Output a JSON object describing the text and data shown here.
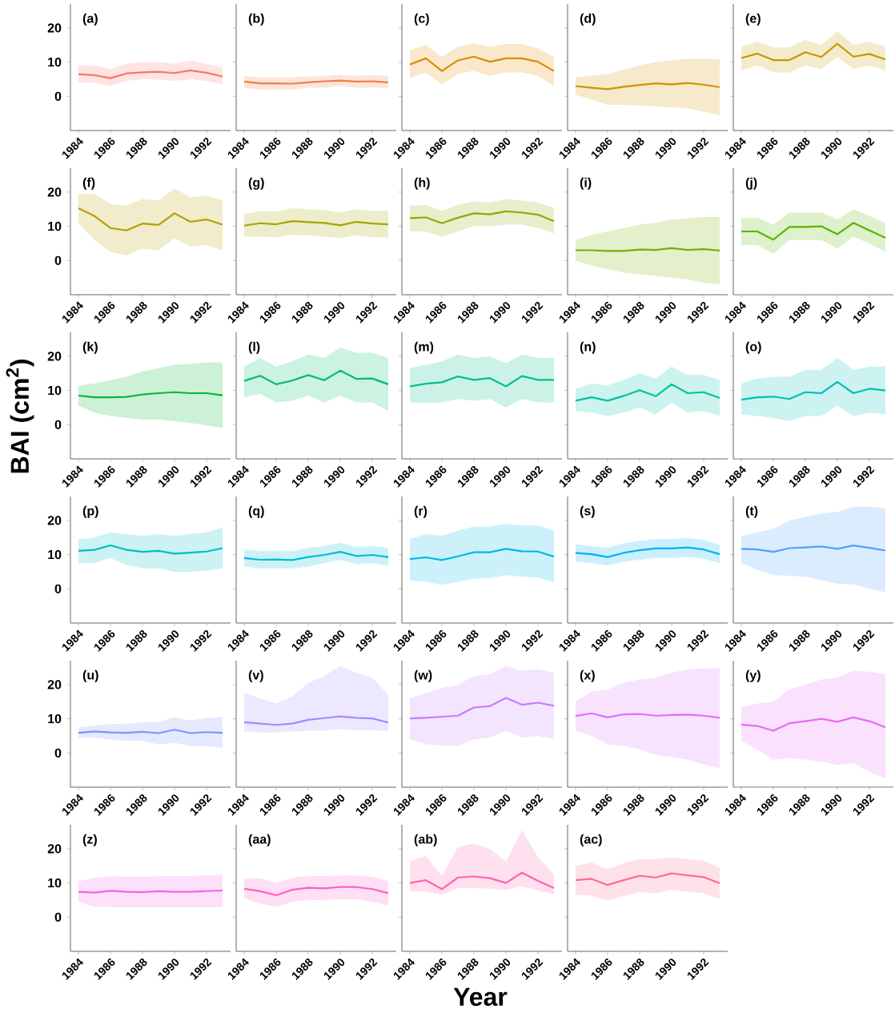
{
  "chart_data": [
    {
      "type": "line",
      "annotations": [
        "(a)"
      ],
      "x": [
        1984,
        1985,
        1986,
        1987,
        1988,
        1989,
        1990,
        1991,
        1992,
        1993
      ],
      "xlim": [
        1983.5,
        1993.5
      ],
      "ylim": [
        -10,
        27
      ],
      "xticks": [
        1984,
        1986,
        1988,
        1990,
        1992
      ],
      "yticks": [
        0,
        10,
        20
      ],
      "series": [
        {
          "color": "#F8766D",
          "values": [
            6.5,
            6.2,
            5.3,
            6.7,
            7.0,
            7.2,
            6.8,
            7.6,
            6.9,
            5.8
          ],
          "lower": [
            4,
            4,
            3,
            4.5,
            5,
            5,
            4.5,
            5,
            4.5,
            3.5
          ],
          "upper": [
            9,
            9,
            8,
            9.5,
            10,
            10,
            9.5,
            10.5,
            9.5,
            8.5
          ]
        }
      ]
    },
    {
      "type": "line",
      "annotations": [
        "(b)"
      ],
      "tick_labels": "x",
      "x": [
        1984,
        1985,
        1986,
        1987,
        1988,
        1989,
        1990,
        1991,
        1992,
        1993
      ],
      "xlim": [
        1983.5,
        1993.5
      ],
      "ylim": [
        -10,
        27
      ],
      "xticks": [
        1984,
        1986,
        1988,
        1990,
        1992
      ],
      "yticks": [
        0,
        10,
        20
      ],
      "series": [
        {
          "color": "#EE7F4A",
          "values": [
            4.3,
            3.8,
            3.8,
            3.7,
            4.1,
            4.4,
            4.6,
            4.3,
            4.4,
            4.1
          ],
          "lower": [
            2.5,
            2,
            2,
            2,
            2.5,
            2.5,
            3,
            2.5,
            2.5,
            2.3
          ],
          "upper": [
            6,
            5.5,
            5.5,
            5.5,
            5.8,
            6,
            6.3,
            6,
            6.2,
            6
          ]
        }
      ]
    },
    {
      "type": "line",
      "annotations": [
        "(c)"
      ],
      "tick_labels": "x",
      "x": [
        1984,
        1985,
        1986,
        1987,
        1988,
        1989,
        1990,
        1991,
        1992,
        1993
      ],
      "xlim": [
        1983.5,
        1993.5
      ],
      "ylim": [
        -10,
        27
      ],
      "xticks": [
        1984,
        1986,
        1988,
        1990,
        1992
      ],
      "yticks": [
        0,
        10,
        20
      ],
      "series": [
        {
          "color": "#E08B00",
          "values": [
            9.3,
            11.1,
            7.4,
            10.5,
            11.6,
            10.1,
            11.1,
            11.1,
            10.1,
            7.4
          ],
          "lower": [
            5.3,
            7,
            3.5,
            6.5,
            7.5,
            6,
            7,
            7,
            6,
            3
          ],
          "upper": [
            13.5,
            15,
            11.5,
            14.5,
            15.5,
            14.5,
            15.3,
            15.3,
            14,
            11.5
          ]
        }
      ]
    },
    {
      "type": "line",
      "annotations": [
        "(d)"
      ],
      "tick_labels": "x",
      "x": [
        1984,
        1985,
        1986,
        1987,
        1988,
        1989,
        1990,
        1991,
        1992,
        1993
      ],
      "xlim": [
        1983.5,
        1993.5
      ],
      "ylim": [
        -10,
        27
      ],
      "xticks": [
        1984,
        1986,
        1988,
        1990,
        1992
      ],
      "yticks": [
        0,
        10,
        20
      ],
      "series": [
        {
          "color": "#D39200",
          "values": [
            3.0,
            2.5,
            2.1,
            2.8,
            3.3,
            3.8,
            3.5,
            3.9,
            3.4,
            2.7
          ],
          "lower": [
            0.5,
            -1,
            -2.5,
            -2.5,
            -2.7,
            -3,
            -3.2,
            -3.5,
            -4.5,
            -5.5
          ],
          "upper": [
            5.5,
            6,
            6.5,
            7.8,
            9,
            10,
            10.5,
            11,
            11,
            10.8
          ]
        }
      ]
    },
    {
      "type": "line",
      "annotations": [
        "(e)"
      ],
      "tick_labels": "x",
      "x": [
        1984,
        1985,
        1986,
        1987,
        1988,
        1989,
        1990,
        1991,
        1992,
        1993
      ],
      "xlim": [
        1983.5,
        1993.5
      ],
      "ylim": [
        -10,
        27
      ],
      "xticks": [
        1984,
        1986,
        1988,
        1990,
        1992
      ],
      "yticks": [
        0,
        10,
        20
      ],
      "series": [
        {
          "color": "#C49A00",
          "values": [
            11.2,
            12.5,
            10.6,
            10.6,
            12.9,
            11.5,
            15.4,
            11.6,
            12.4,
            10.8
          ],
          "lower": [
            7.5,
            9,
            7,
            7,
            9,
            8,
            11.5,
            8,
            9,
            7.5
          ],
          "upper": [
            14.5,
            16,
            14.3,
            14.3,
            16.5,
            15,
            19,
            15,
            16,
            14.5
          ]
        }
      ]
    },
    {
      "type": "line",
      "annotations": [
        "(f)"
      ],
      "x": [
        1984,
        1985,
        1986,
        1987,
        1988,
        1989,
        1990,
        1991,
        1992,
        1993
      ],
      "xlim": [
        1983.5,
        1993.5
      ],
      "ylim": [
        -10,
        27
      ],
      "xticks": [
        1984,
        1986,
        1988,
        1990,
        1992
      ],
      "yticks": [
        0,
        10,
        20
      ],
      "series": [
        {
          "color": "#B4A000",
          "values": [
            15.3,
            13,
            9.5,
            8.8,
            10.8,
            10.4,
            13.8,
            11.3,
            12,
            10.5
          ],
          "lower": [
            11,
            6,
            2.5,
            1.5,
            3.5,
            3,
            6.5,
            4,
            4.5,
            3
          ],
          "upper": [
            19.5,
            19.5,
            16.5,
            16,
            18,
            17.5,
            21,
            18.5,
            19,
            17.5
          ]
        }
      ]
    },
    {
      "type": "line",
      "annotations": [
        "(g)"
      ],
      "tick_labels": "x",
      "x": [
        1984,
        1985,
        1986,
        1987,
        1988,
        1989,
        1990,
        1991,
        1992,
        1993
      ],
      "xlim": [
        1983.5,
        1993.5
      ],
      "ylim": [
        -10,
        27
      ],
      "xticks": [
        1984,
        1986,
        1988,
        1990,
        1992
      ],
      "yticks": [
        0,
        10,
        20
      ],
      "series": [
        {
          "color": "#A3A500",
          "values": [
            10.2,
            10.9,
            10.6,
            11.5,
            11.2,
            11.0,
            10.3,
            11.3,
            10.8,
            10.6
          ],
          "lower": [
            7,
            7,
            6.8,
            7.5,
            7.3,
            7,
            6.5,
            7.3,
            6.8,
            6.7
          ],
          "upper": [
            13.5,
            14.5,
            14.3,
            15.3,
            15,
            14.8,
            14,
            15,
            14.5,
            14.5
          ]
        }
      ]
    },
    {
      "type": "line",
      "annotations": [
        "(h)"
      ],
      "tick_labels": "x",
      "x": [
        1984,
        1985,
        1986,
        1987,
        1988,
        1989,
        1990,
        1991,
        1992,
        1993
      ],
      "xlim": [
        1983.5,
        1993.5
      ],
      "ylim": [
        -10,
        27
      ],
      "xticks": [
        1984,
        1986,
        1988,
        1990,
        1992
      ],
      "yticks": [
        0,
        10,
        20
      ],
      "series": [
        {
          "color": "#8FAA00",
          "values": [
            12.4,
            12.6,
            10.9,
            12.5,
            13.8,
            13.5,
            14.4,
            14,
            13.4,
            11.5
          ],
          "lower": [
            8.5,
            8.5,
            7,
            8.5,
            10,
            10,
            10.5,
            10.5,
            9.5,
            8
          ],
          "upper": [
            16,
            16.3,
            14.5,
            16.3,
            17.3,
            17,
            18,
            17.5,
            17,
            15.3
          ]
        }
      ]
    },
    {
      "type": "line",
      "annotations": [
        "(i)"
      ],
      "tick_labels": "x",
      "x": [
        1984,
        1985,
        1986,
        1987,
        1988,
        1989,
        1990,
        1991,
        1992,
        1993
      ],
      "xlim": [
        1983.5,
        1993.5
      ],
      "ylim": [
        -10,
        27
      ],
      "xticks": [
        1984,
        1986,
        1988,
        1990,
        1992
      ],
      "yticks": [
        0,
        10,
        20
      ],
      "series": [
        {
          "color": "#7AAE00",
          "values": [
            3.0,
            3.0,
            2.8,
            2.8,
            3.2,
            3.1,
            3.6,
            3.1,
            3.3,
            2.9
          ],
          "lower": [
            0,
            -1.5,
            -2.5,
            -3.5,
            -4,
            -4.5,
            -5,
            -5.5,
            -6.5,
            -7
          ],
          "upper": [
            6,
            7.5,
            8.5,
            9.5,
            10.5,
            11,
            12,
            12.3,
            12.7,
            12.7
          ]
        }
      ]
    },
    {
      "type": "line",
      "annotations": [
        "(j)"
      ],
      "tick_labels": "x",
      "x": [
        1984,
        1985,
        1986,
        1987,
        1988,
        1989,
        1990,
        1991,
        1992,
        1993
      ],
      "xlim": [
        1983.5,
        1993.5
      ],
      "ylim": [
        -10,
        27
      ],
      "xticks": [
        1984,
        1986,
        1988,
        1990,
        1992
      ],
      "yticks": [
        0,
        10,
        20
      ],
      "series": [
        {
          "color": "#5BB300",
          "values": [
            8.5,
            8.5,
            6.1,
            9.8,
            9.8,
            10,
            7.7,
            11,
            8.8,
            6.6
          ],
          "lower": [
            4.5,
            4.5,
            2,
            6,
            6,
            6,
            3.5,
            7,
            5,
            2.5
          ],
          "upper": [
            12.5,
            12.5,
            10.5,
            14,
            14,
            14,
            12,
            15,
            13,
            11
          ]
        }
      ]
    },
    {
      "type": "line",
      "annotations": [
        "(k)"
      ],
      "ylabel": "BAI (cm$^{2}$)",
      "x": [
        1984,
        1985,
        1986,
        1987,
        1988,
        1989,
        1990,
        1991,
        1992,
        1993
      ],
      "xlim": [
        1983.5,
        1993.5
      ],
      "ylim": [
        -10,
        27
      ],
      "xticks": [
        1984,
        1986,
        1988,
        1990,
        1992
      ],
      "yticks": [
        0,
        10,
        20
      ],
      "series": [
        {
          "color": "#00BA38",
          "values": [
            8.5,
            8,
            8,
            8.1,
            8.8,
            9.2,
            9.5,
            9.2,
            9.2,
            8.6
          ],
          "lower": [
            5.5,
            3.5,
            2.5,
            2,
            1.5,
            1.5,
            1,
            0.5,
            -0.2,
            -1
          ],
          "upper": [
            11.5,
            12,
            13,
            14,
            15.5,
            16.5,
            17.5,
            17.8,
            18.2,
            18.2
          ]
        }
      ]
    },
    {
      "type": "line",
      "annotations": [
        "(l)"
      ],
      "tick_labels": "x",
      "x": [
        1984,
        1985,
        1986,
        1987,
        1988,
        1989,
        1990,
        1991,
        1992,
        1993
      ],
      "xlim": [
        1983.5,
        1993.5
      ],
      "ylim": [
        -10,
        27
      ],
      "xticks": [
        1984,
        1986,
        1988,
        1990,
        1992
      ],
      "yticks": [
        0,
        10,
        20
      ],
      "series": [
        {
          "color": "#00BE67",
          "values": [
            12.8,
            14.3,
            11.8,
            12.9,
            14.5,
            13,
            15.8,
            13.4,
            13.5,
            11.8
          ],
          "lower": [
            8,
            9,
            6.5,
            7,
            8.5,
            6.5,
            8.5,
            6.5,
            6.5,
            4
          ],
          "upper": [
            17,
            19.5,
            17,
            18.5,
            20.5,
            19.5,
            22.5,
            21,
            21,
            19.5
          ]
        }
      ]
    },
    {
      "type": "line",
      "annotations": [
        "(m)"
      ],
      "tick_labels": "x",
      "x": [
        1984,
        1985,
        1986,
        1987,
        1988,
        1989,
        1990,
        1991,
        1992,
        1993
      ],
      "xlim": [
        1983.5,
        1993.5
      ],
      "ylim": [
        -10,
        27
      ],
      "xticks": [
        1984,
        1986,
        1988,
        1990,
        1992
      ],
      "yticks": [
        0,
        10,
        20
      ],
      "series": [
        {
          "color": "#00C08B",
          "values": [
            11.2,
            12,
            12.4,
            14.1,
            13.1,
            13.6,
            11.2,
            14.2,
            13.1,
            13.1
          ],
          "lower": [
            6.5,
            6.4,
            6.5,
            7.5,
            7,
            7.5,
            5,
            7.5,
            6.5,
            6.5
          ],
          "upper": [
            16.5,
            17.5,
            18.5,
            20.5,
            19.5,
            20,
            18,
            20.5,
            19.5,
            19.5
          ]
        }
      ]
    },
    {
      "type": "line",
      "annotations": [
        "(n)"
      ],
      "tick_labels": "x",
      "x": [
        1984,
        1985,
        1986,
        1987,
        1988,
        1989,
        1990,
        1991,
        1992,
        1993
      ],
      "xlim": [
        1983.5,
        1993.5
      ],
      "ylim": [
        -10,
        27
      ],
      "xticks": [
        1984,
        1986,
        1988,
        1990,
        1992
      ],
      "yticks": [
        0,
        10,
        20
      ],
      "series": [
        {
          "color": "#00C1A3",
          "values": [
            7,
            8,
            7,
            8.4,
            10.1,
            8.3,
            11.8,
            9.2,
            9.5,
            7.8
          ],
          "lower": [
            4,
            3.5,
            2.5,
            3.5,
            5,
            3,
            6.5,
            3.5,
            4,
            2.5
          ],
          "upper": [
            10.5,
            12,
            11.5,
            13,
            15,
            13.5,
            17,
            14.5,
            14.5,
            13
          ]
        }
      ]
    },
    {
      "type": "line",
      "annotations": [
        "(o)"
      ],
      "tick_labels": "x",
      "x": [
        1984,
        1985,
        1986,
        1987,
        1988,
        1989,
        1990,
        1991,
        1992,
        1993
      ],
      "xlim": [
        1983.5,
        1993.5
      ],
      "ylim": [
        -10,
        27
      ],
      "xticks": [
        1984,
        1986,
        1988,
        1990,
        1992
      ],
      "yticks": [
        0,
        10,
        20
      ],
      "series": [
        {
          "color": "#00C0B8",
          "values": [
            7.3,
            8,
            8.2,
            7.5,
            9.5,
            9.2,
            12.5,
            9.2,
            10.5,
            10
          ],
          "lower": [
            3,
            2.5,
            2,
            1,
            2.5,
            2.5,
            5.5,
            2.5,
            3.5,
            3
          ],
          "upper": [
            12,
            13.5,
            14,
            14,
            16,
            16,
            19.5,
            16,
            17,
            17
          ]
        }
      ]
    },
    {
      "type": "line",
      "annotations": [
        "(p)"
      ],
      "x": [
        1984,
        1985,
        1986,
        1987,
        1988,
        1989,
        1990,
        1991,
        1992,
        1993
      ],
      "xlim": [
        1983.5,
        1993.5
      ],
      "ylim": [
        -10,
        27
      ],
      "xticks": [
        1984,
        1986,
        1988,
        1990,
        1992
      ],
      "yticks": [
        0,
        10,
        20
      ],
      "series": [
        {
          "color": "#00BFC4",
          "values": [
            11.1,
            11.4,
            12.7,
            11.4,
            10.8,
            11.1,
            10.3,
            10.6,
            10.9,
            11.9
          ],
          "lower": [
            7.5,
            7.5,
            9,
            7,
            6,
            6,
            5,
            5,
            5.3,
            6
          ],
          "upper": [
            14.5,
            15,
            16.5,
            16,
            15.5,
            16,
            15.5,
            16,
            16.5,
            18
          ]
        }
      ]
    },
    {
      "type": "line",
      "annotations": [
        "(q)"
      ],
      "tick_labels": "x",
      "x": [
        1984,
        1985,
        1986,
        1987,
        1988,
        1989,
        1990,
        1991,
        1992,
        1993
      ],
      "xlim": [
        1983.5,
        1993.5
      ],
      "ylim": [
        -10,
        27
      ],
      "xticks": [
        1984,
        1986,
        1988,
        1990,
        1992
      ],
      "yticks": [
        0,
        10,
        20
      ],
      "series": [
        {
          "color": "#00BCD8",
          "values": [
            9,
            8.5,
            8.6,
            8.4,
            9.3,
            9.9,
            10.8,
            9.6,
            9.9,
            9.3
          ],
          "lower": [
            6.5,
            6,
            6,
            6,
            6.5,
            7.5,
            8.5,
            7.2,
            7.5,
            6.8
          ],
          "upper": [
            11.5,
            11,
            11,
            11,
            12,
            12.5,
            13.5,
            12.3,
            12.5,
            12
          ]
        }
      ]
    },
    {
      "type": "line",
      "annotations": [
        "(r)"
      ],
      "tick_labels": "x",
      "x": [
        1984,
        1985,
        1986,
        1987,
        1988,
        1989,
        1990,
        1991,
        1992,
        1993
      ],
      "xlim": [
        1983.5,
        1993.5
      ],
      "ylim": [
        -10,
        27
      ],
      "xticks": [
        1984,
        1986,
        1988,
        1990,
        1992
      ],
      "yticks": [
        0,
        10,
        20
      ],
      "series": [
        {
          "color": "#00B8E7",
          "values": [
            8.7,
            9.2,
            8.4,
            9.5,
            10.7,
            10.7,
            11.7,
            11,
            10.9,
            9.4
          ],
          "lower": [
            2.5,
            2,
            1.2,
            2,
            3,
            3.2,
            4,
            3.5,
            3.3,
            1.8
          ],
          "upper": [
            14.5,
            16,
            15.5,
            17,
            18.2,
            18.2,
            19,
            18.5,
            18.5,
            17
          ]
        }
      ]
    },
    {
      "type": "line",
      "annotations": [
        "(s)"
      ],
      "tick_labels": "x",
      "x": [
        1984,
        1985,
        1986,
        1987,
        1988,
        1989,
        1990,
        1991,
        1992,
        1993
      ],
      "xlim": [
        1983.5,
        1993.5
      ],
      "ylim": [
        -10,
        27
      ],
      "xticks": [
        1984,
        1986,
        1988,
        1990,
        1992
      ],
      "yticks": [
        0,
        10,
        20
      ],
      "series": [
        {
          "color": "#00B0F6",
          "values": [
            10.5,
            10.1,
            9.3,
            10.5,
            11.3,
            11.8,
            11.8,
            12.1,
            11.5,
            10.1
          ],
          "lower": [
            8,
            7.5,
            6.8,
            8,
            8.5,
            9,
            9,
            9.3,
            8.8,
            7.5
          ],
          "upper": [
            13,
            12.5,
            12,
            13.3,
            14,
            14.5,
            14.5,
            14.8,
            14.3,
            12.8
          ]
        }
      ]
    },
    {
      "type": "line",
      "annotations": [
        "(t)"
      ],
      "tick_labels": "x",
      "x": [
        1984,
        1985,
        1986,
        1987,
        1988,
        1989,
        1990,
        1991,
        1992,
        1993
      ],
      "xlim": [
        1983.5,
        1993.5
      ],
      "ylim": [
        -10,
        27
      ],
      "xticks": [
        1984,
        1986,
        1988,
        1990,
        1992
      ],
      "yticks": [
        0,
        10,
        20
      ],
      "series": [
        {
          "color": "#4FA0FF",
          "values": [
            11.7,
            11.5,
            10.8,
            11.9,
            12.1,
            12.4,
            11.7,
            12.7,
            12,
            11.2
          ],
          "lower": [
            7.5,
            5.5,
            4,
            3.8,
            3.5,
            2.5,
            1.5,
            1.3,
            0,
            -1
          ],
          "upper": [
            15.5,
            16.5,
            17.5,
            20,
            21,
            22,
            22.5,
            24,
            24,
            23.5
          ]
        }
      ]
    },
    {
      "type": "line",
      "annotations": [
        "(u)"
      ],
      "x": [
        1984,
        1985,
        1986,
        1987,
        1988,
        1989,
        1990,
        1991,
        1992,
        1993
      ],
      "xlim": [
        1983.5,
        1993.5
      ],
      "ylim": [
        -10,
        27
      ],
      "xticks": [
        1984,
        1986,
        1988,
        1990,
        1992
      ],
      "yticks": [
        0,
        10,
        20
      ],
      "series": [
        {
          "color": "#7C96FF",
          "values": [
            5.9,
            6.3,
            6.0,
            5.9,
            6.2,
            5.8,
            6.8,
            5.8,
            6.1,
            5.9
          ],
          "lower": [
            4.5,
            4.5,
            4,
            3.5,
            3.5,
            2.5,
            3,
            2,
            2,
            1.5
          ],
          "upper": [
            7.5,
            8,
            8.5,
            8.5,
            9,
            9,
            10.5,
            9.5,
            10.2,
            10.5
          ]
        }
      ]
    },
    {
      "type": "line",
      "annotations": [
        "(v)"
      ],
      "tick_labels": "x",
      "x": [
        1984,
        1985,
        1986,
        1987,
        1988,
        1989,
        1990,
        1991,
        1992,
        1993
      ],
      "xlim": [
        1983.5,
        1993.5
      ],
      "ylim": [
        -10,
        27
      ],
      "xticks": [
        1984,
        1986,
        1988,
        1990,
        1992
      ],
      "yticks": [
        0,
        10,
        20
      ],
      "series": [
        {
          "color": "#A58AFF",
          "values": [
            9,
            8.6,
            8.2,
            8.6,
            9.7,
            10.2,
            10.7,
            10.3,
            10.1,
            8.9
          ],
          "lower": [
            6.3,
            6,
            6,
            6.3,
            6.5,
            6.5,
            7,
            6.7,
            6.7,
            6.3
          ],
          "upper": [
            17.5,
            16,
            14.5,
            16.5,
            20.5,
            22.5,
            25.5,
            23.5,
            22,
            17
          ]
        }
      ]
    },
    {
      "type": "line",
      "annotations": [
        "(w)"
      ],
      "tick_labels": "x",
      "x": [
        1984,
        1985,
        1986,
        1987,
        1988,
        1989,
        1990,
        1991,
        1992,
        1993
      ],
      "xlim": [
        1983.5,
        1993.5
      ],
      "ylim": [
        -10,
        27
      ],
      "xticks": [
        1984,
        1986,
        1988,
        1990,
        1992
      ],
      "yticks": [
        0,
        10,
        20
      ],
      "series": [
        {
          "color": "#C77CFF",
          "values": [
            10.1,
            10.3,
            10.6,
            10.9,
            13.3,
            13.7,
            16.1,
            14.1,
            14.7,
            13.8
          ],
          "lower": [
            4,
            2.5,
            2.2,
            2,
            4,
            4.5,
            6.5,
            4.5,
            5,
            4
          ],
          "upper": [
            16,
            17.5,
            19,
            20,
            22.5,
            23,
            25.5,
            24,
            24.5,
            23.5
          ]
        }
      ]
    },
    {
      "type": "line",
      "annotations": [
        "(x)"
      ],
      "tick_labels": "x",
      "x": [
        1984,
        1985,
        1986,
        1987,
        1988,
        1989,
        1990,
        1991,
        1992,
        1993
      ],
      "xlim": [
        1983.5,
        1993.5
      ],
      "ylim": [
        -10,
        27
      ],
      "xticks": [
        1984,
        1986,
        1988,
        1990,
        1992
      ],
      "yticks": [
        0,
        10,
        20
      ],
      "series": [
        {
          "color": "#DB72FB",
          "values": [
            10.8,
            11.6,
            10.4,
            11.3,
            11.4,
            10.9,
            11.1,
            11.2,
            10.9,
            10.3
          ],
          "lower": [
            6.5,
            5,
            2.5,
            2,
            1,
            -0.5,
            -1.2,
            -2,
            -3.3,
            -4.5
          ],
          "upper": [
            15,
            18,
            18.5,
            20.5,
            21.5,
            22,
            23.5,
            24.5,
            24.7,
            24.8
          ]
        }
      ]
    },
    {
      "type": "line",
      "annotations": [
        "(y)"
      ],
      "tick_labels": "x",
      "x": [
        1984,
        1985,
        1986,
        1987,
        1988,
        1989,
        1990,
        1991,
        1992,
        1993
      ],
      "xlim": [
        1983.5,
        1993.5
      ],
      "ylim": [
        -10,
        27
      ],
      "xticks": [
        1984,
        1986,
        1988,
        1990,
        1992
      ],
      "yticks": [
        0,
        10,
        20
      ],
      "series": [
        {
          "color": "#E76BF3",
          "values": [
            8.3,
            7.9,
            6.5,
            8.7,
            9.3,
            10,
            9.1,
            10.4,
            9.3,
            7.5
          ],
          "lower": [
            3.5,
            1,
            -2,
            -1.5,
            -2,
            -2.5,
            -3.5,
            -3,
            -5.5,
            -7.5
          ],
          "upper": [
            13.5,
            14.5,
            15,
            18.5,
            20,
            21.5,
            22,
            24,
            23.8,
            23
          ]
        }
      ]
    },
    {
      "type": "line",
      "annotations": [
        "(z)"
      ],
      "x": [
        1984,
        1985,
        1986,
        1987,
        1988,
        1989,
        1990,
        1991,
        1992,
        1993
      ],
      "xlim": [
        1983.5,
        1993.5
      ],
      "ylim": [
        -10,
        27
      ],
      "xticks": [
        1984,
        1986,
        1988,
        1990,
        1992
      ],
      "yticks": [
        0,
        10,
        20
      ],
      "series": [
        {
          "color": "#F564E3",
          "values": [
            7.4,
            7.2,
            7.7,
            7.4,
            7.3,
            7.6,
            7.4,
            7.4,
            7.6,
            7.8
          ],
          "lower": [
            4.5,
            3,
            3,
            2.8,
            2.8,
            2.8,
            2.8,
            2.8,
            2.8,
            3
          ],
          "upper": [
            10.5,
            11.5,
            12,
            11.8,
            11.8,
            12,
            12,
            12,
            12.2,
            12.5
          ]
        }
      ]
    },
    {
      "type": "line",
      "annotations": [
        "(aa)"
      ],
      "tick_labels": "x",
      "x": [
        1984,
        1985,
        1986,
        1987,
        1988,
        1989,
        1990,
        1991,
        1992,
        1993
      ],
      "xlim": [
        1983.5,
        1993.5
      ],
      "ylim": [
        -10,
        27
      ],
      "xticks": [
        1984,
        1986,
        1988,
        1990,
        1992
      ],
      "yticks": [
        0,
        10,
        20
      ],
      "series": [
        {
          "color": "#FF61C3",
          "values": [
            8.3,
            7.6,
            6.4,
            8.0,
            8.6,
            8.4,
            8.8,
            8.8,
            8.2,
            7
          ],
          "lower": [
            5.5,
            4,
            3,
            4.5,
            5,
            5,
            5.3,
            5.3,
            4.5,
            3.3
          ],
          "upper": [
            11.3,
            11.3,
            10,
            11.5,
            12,
            12,
            12.2,
            12.2,
            11.8,
            10.5
          ]
        }
      ]
    },
    {
      "type": "line",
      "annotations": [
        "(ab)"
      ],
      "xlabel": "Year",
      "tick_labels": "x",
      "x": [
        1984,
        1985,
        1986,
        1987,
        1988,
        1989,
        1990,
        1991,
        1992,
        1993
      ],
      "xlim": [
        1983.5,
        1993.5
      ],
      "ylim": [
        -10,
        27
      ],
      "xticks": [
        1984,
        1986,
        1988,
        1990,
        1992
      ],
      "yticks": [
        0,
        10,
        20
      ],
      "series": [
        {
          "color": "#FF64B0",
          "values": [
            10,
            10.8,
            8.2,
            11.6,
            11.9,
            11.4,
            10,
            13,
            10.6,
            8.5
          ],
          "lower": [
            7.5,
            7.5,
            6.5,
            8.5,
            8.5,
            8.3,
            8,
            9,
            7.8,
            6.7
          ],
          "upper": [
            16.3,
            18,
            12,
            20.5,
            21.5,
            20,
            16.2,
            25.5,
            17.5,
            12.5
          ]
        }
      ]
    },
    {
      "type": "line",
      "annotations": [
        "(ac)"
      ],
      "tick_labels": "x",
      "x": [
        1984,
        1985,
        1986,
        1987,
        1988,
        1989,
        1990,
        1991,
        1992,
        1993
      ],
      "xlim": [
        1983.5,
        1993.5
      ],
      "ylim": [
        -10,
        27
      ],
      "xticks": [
        1984,
        1986,
        1988,
        1990,
        1992
      ],
      "yticks": [
        0,
        10,
        20
      ],
      "series": [
        {
          "color": "#FF6C91",
          "values": [
            10.8,
            11.2,
            9.4,
            10.8,
            12.1,
            11.6,
            12.8,
            12.2,
            11.7,
            9.9
          ],
          "lower": [
            6.5,
            6.3,
            4.8,
            6.2,
            7.3,
            7,
            8,
            7.5,
            7,
            5.2
          ],
          "upper": [
            15,
            16,
            14,
            15.8,
            17,
            17,
            17.5,
            17,
            16.5,
            14.5
          ]
        }
      ]
    }
  ]
}
